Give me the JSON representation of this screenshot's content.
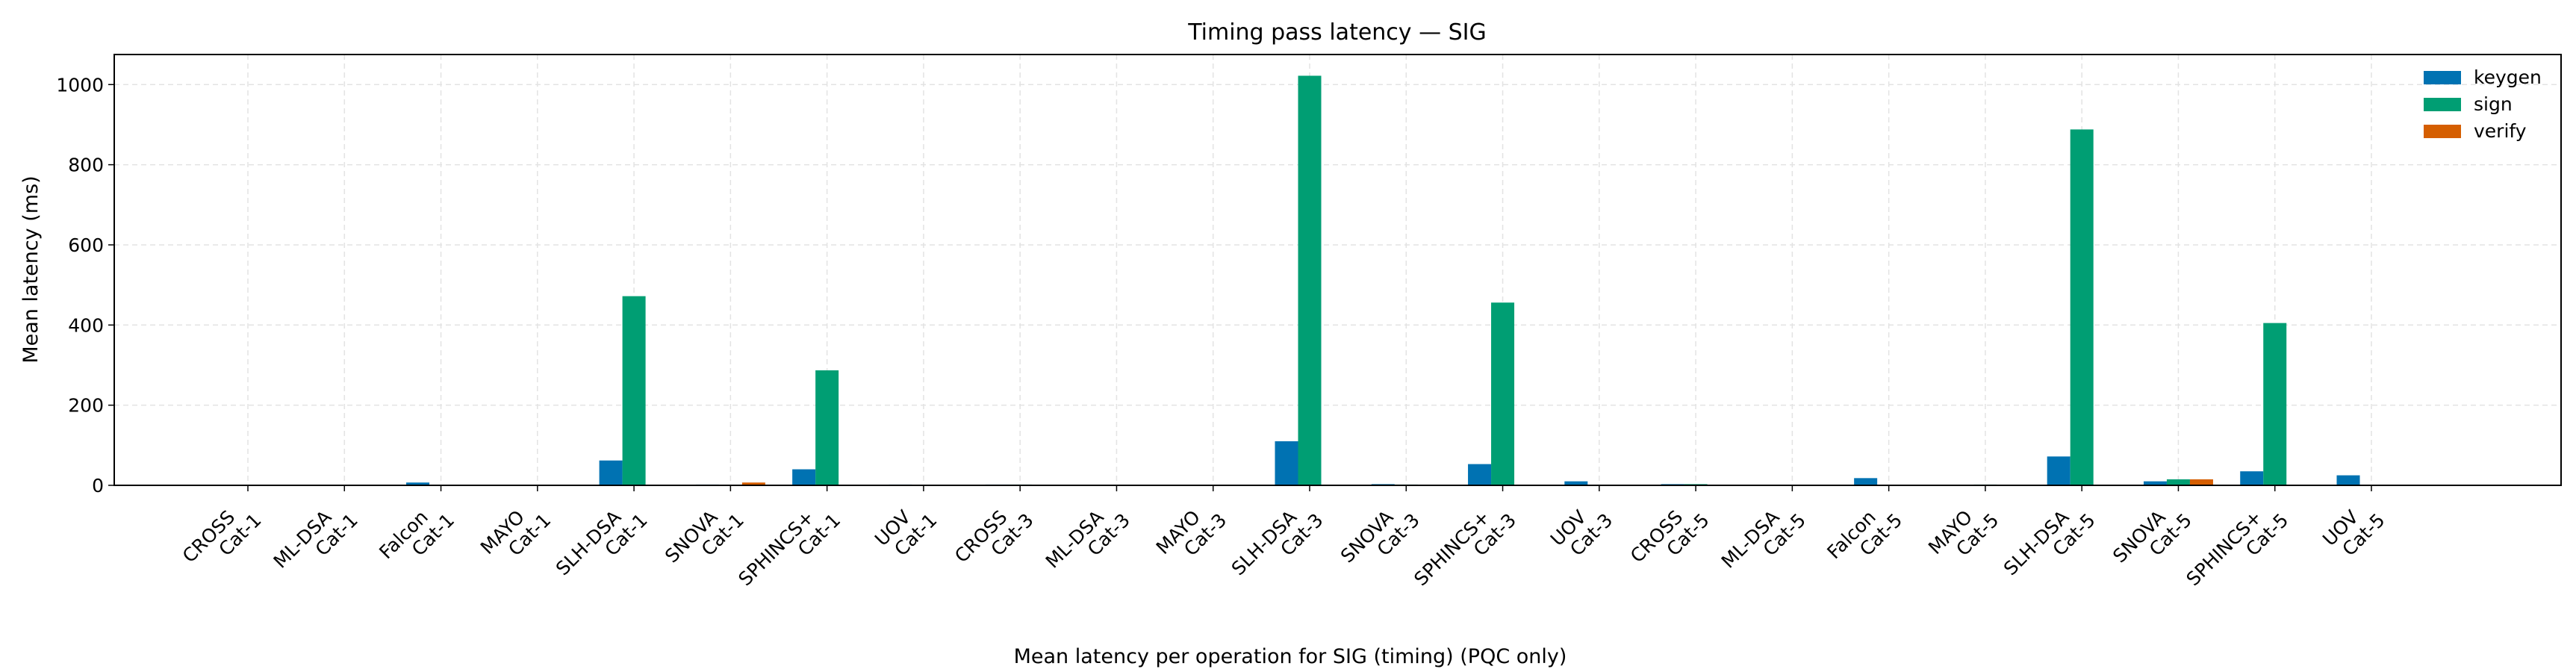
{
  "chart_data": {
    "type": "bar",
    "title": "Timing pass latency — SIG",
    "xlabel": "",
    "ylabel": "Mean latency (ms)",
    "caption": "Mean latency per operation for SIG (timing) (PQC only)",
    "ylim": [
      0,
      1075
    ],
    "yticks": [
      0,
      200,
      400,
      600,
      800,
      1000
    ],
    "grid": true,
    "legend_position": "top-right",
    "categories": [
      [
        "CROSS",
        "Cat-1"
      ],
      [
        "ML-DSA",
        "Cat-1"
      ],
      [
        "Falcon",
        "Cat-1"
      ],
      [
        "MAYO",
        "Cat-1"
      ],
      [
        "SLH-DSA",
        "Cat-1"
      ],
      [
        "SNOVA",
        "Cat-1"
      ],
      [
        "SPHINCS+",
        "Cat-1"
      ],
      [
        "UOV",
        "Cat-1"
      ],
      [
        "CROSS",
        "Cat-3"
      ],
      [
        "ML-DSA",
        "Cat-3"
      ],
      [
        "MAYO",
        "Cat-3"
      ],
      [
        "SLH-DSA",
        "Cat-3"
      ],
      [
        "SNOVA",
        "Cat-3"
      ],
      [
        "SPHINCS+",
        "Cat-3"
      ],
      [
        "UOV",
        "Cat-3"
      ],
      [
        "CROSS",
        "Cat-5"
      ],
      [
        "ML-DSA",
        "Cat-5"
      ],
      [
        "Falcon",
        "Cat-5"
      ],
      [
        "MAYO",
        "Cat-5"
      ],
      [
        "SLH-DSA",
        "Cat-5"
      ],
      [
        "SNOVA",
        "Cat-5"
      ],
      [
        "SPHINCS+",
        "Cat-5"
      ],
      [
        "UOV",
        "Cat-5"
      ]
    ],
    "series": [
      {
        "name": "keygen",
        "color": "#0072b2",
        "values": [
          0.5,
          0.3,
          7,
          0.4,
          62,
          2,
          40,
          2,
          2,
          0.4,
          0.6,
          110,
          3,
          53,
          10,
          3,
          0.5,
          18,
          1.5,
          72,
          10,
          35,
          25
        ]
      },
      {
        "name": "sign",
        "color": "#009e73",
        "values": [
          1,
          0.4,
          0.5,
          1,
          472,
          1,
          287,
          0.3,
          2,
          0.5,
          1,
          1022,
          2,
          456,
          0.5,
          3,
          0.6,
          1,
          2,
          888,
          15,
          405,
          0.5
        ]
      },
      {
        "name": "verify",
        "color": "#d55e00",
        "values": [
          0.4,
          0.2,
          0.2,
          0.4,
          0.4,
          7,
          0.5,
          0.3,
          0.5,
          0.2,
          0.5,
          0.6,
          1,
          0.8,
          0.3,
          1,
          0.3,
          0.3,
          0.6,
          0.8,
          15,
          0.8,
          0.3
        ]
      }
    ]
  }
}
